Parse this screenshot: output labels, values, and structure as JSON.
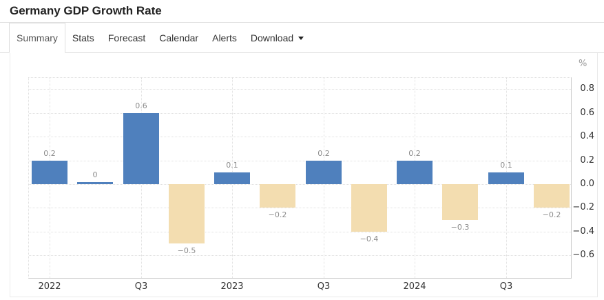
{
  "header": {
    "title": "Germany GDP Growth Rate"
  },
  "tabs": [
    {
      "label": "Summary",
      "active": true
    },
    {
      "label": "Stats",
      "active": false
    },
    {
      "label": "Forecast",
      "active": false
    },
    {
      "label": "Calendar",
      "active": false
    },
    {
      "label": "Alerts",
      "active": false
    },
    {
      "label": "Download",
      "active": false,
      "has_caret": true
    }
  ],
  "icons": {
    "download_caret": "caret-down-icon"
  },
  "chart_data": {
    "type": "bar",
    "title": "Germany GDP Growth Rate",
    "unit_label": "%",
    "values": [
      0.2,
      0,
      0.6,
      -0.5,
      0.1,
      -0.2,
      0.2,
      -0.4,
      0.2,
      -0.3,
      0.1,
      -0.2
    ],
    "data_labels": [
      "0.2",
      "0",
      "0.6",
      "−0.5",
      "0.1",
      "−0.2",
      "0.2",
      "−0.4",
      "0.2",
      "−0.3",
      "0.1",
      "−0.2"
    ],
    "x_tick_labels": [
      "2022",
      "Q3",
      "2023",
      "Q3",
      "2024",
      "Q3"
    ],
    "x_tick_every": 2,
    "y_ticks": [
      0.8,
      0.6,
      0.4,
      0.2,
      0.0,
      -0.2,
      -0.4,
      -0.6
    ],
    "y_tick_labels": [
      "0.8",
      "0.6",
      "0.4",
      "0.2",
      "0.0",
      "−0.2",
      "−0.4",
      "−0.6"
    ],
    "ylim": [
      -0.8,
      0.9
    ],
    "grid": "dotted",
    "legend": "none",
    "positive_color": "#4f80bd",
    "negative_color": "#f3ddb0",
    "label_color": "#8a8a8a",
    "axis_label_color": "#333333",
    "unit_color": "#999999"
  }
}
